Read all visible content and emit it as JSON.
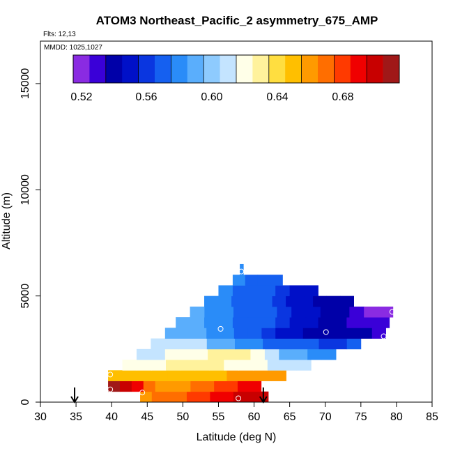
{
  "chart_data": {
    "type": "heatmap",
    "title": "ATOM3 Northeast_Pacific_2 asymmetry_675_AMP",
    "flights_label": "Flts: 12,13",
    "mmdd_label": "MMDD: 1025,1027",
    "xlabel": "Latitude (deg N)",
    "ylabel": "Altitude (m)",
    "xlim": [
      30,
      85
    ],
    "ylim": [
      0,
      17000
    ],
    "x_ticks": [
      "30",
      "35",
      "40",
      "45",
      "50",
      "55",
      "60",
      "65",
      "70",
      "75",
      "80",
      "85"
    ],
    "y_ticks": [
      "0",
      "5000",
      "10000",
      "15000"
    ],
    "colorbar": {
      "min": 0.51,
      "max": 0.71,
      "labels": [
        "0.52",
        "0.56",
        "0.60",
        "0.64",
        "0.68"
      ],
      "colors": [
        "#8a2be2",
        "#3a00d8",
        "#0000a8",
        "#0010c8",
        "#0a36e0",
        "#1560f0",
        "#2a8cf8",
        "#5aaefc",
        "#8ecbfe",
        "#c4e4ff",
        "#ffffe8",
        "#fff29c",
        "#ffde40",
        "#ffbf00",
        "#ff9a00",
        "#ff6e00",
        "#ff3a00",
        "#f00000",
        "#c80000",
        "#a01818"
      ]
    },
    "arrows_at_lat": [
      34.8,
      61.3
    ],
    "rows": [
      {
        "alt": [
          0,
          500
        ],
        "lat": [
          44,
          62
        ],
        "v": [
          0.65,
          0.66,
          0.66,
          0.66,
          0.67,
          0.67,
          0.68,
          0.68,
          0.69,
          0.69,
          0.69
        ]
      },
      {
        "alt": [
          500,
          1000
        ],
        "lat": [
          39.5,
          61
        ],
        "v": [
          0.7,
          0.69,
          0.68,
          0.66,
          0.65,
          0.65,
          0.65,
          0.66,
          0.66,
          0.67,
          0.67,
          0.68,
          0.68
        ]
      },
      {
        "alt": [
          1000,
          1500
        ],
        "lat": [
          39.5,
          64.5
        ],
        "v": [
          0.64,
          0.64,
          0.64,
          0.64,
          0.64,
          0.64,
          0.64,
          0.64,
          0.65,
          0.65,
          0.65,
          0.65
        ]
      },
      {
        "alt": [
          1500,
          2000
        ],
        "lat": [
          41.5,
          68
        ],
        "v": [
          0.61,
          0.61,
          0.61,
          0.62,
          0.62,
          0.62,
          0.62,
          0.61,
          0.61,
          0.61,
          0.6,
          0.6,
          0.6
        ]
      },
      {
        "alt": [
          2000,
          2500
        ],
        "lat": [
          43.5,
          71.5
        ],
        "v": [
          0.6,
          0.6,
          0.61,
          0.61,
          0.61,
          0.62,
          0.62,
          0.62,
          0.61,
          0.6,
          0.59,
          0.59,
          0.58,
          0.58
        ]
      },
      {
        "alt": [
          2500,
          3000
        ],
        "lat": [
          45.5,
          75
        ],
        "v": [
          0.6,
          0.6,
          0.6,
          0.6,
          0.59,
          0.59,
          0.58,
          0.58,
          0.57,
          0.57,
          0.56,
          0.56,
          0.55,
          0.55,
          0.56
        ]
      },
      {
        "alt": [
          3000,
          3500
        ],
        "lat": [
          47.5,
          78.5
        ],
        "v": [
          0.59,
          0.59,
          0.59,
          0.58,
          0.58,
          0.57,
          0.57,
          0.55,
          0.54,
          0.54,
          0.53,
          0.53,
          0.53,
          0.53,
          0.53,
          0.52
        ]
      },
      {
        "alt": [
          3500,
          4000
        ],
        "lat": [
          49,
          79
        ],
        "v": [
          0.59,
          0.59,
          0.58,
          0.58,
          0.57,
          0.57,
          0.56,
          0.55,
          0.54,
          0.54,
          0.53,
          0.53,
          0.52,
          0.52,
          0.52
        ]
      },
      {
        "alt": [
          4000,
          4500
        ],
        "lat": [
          51,
          79.5
        ],
        "v": [
          0.59,
          0.58,
          0.58,
          0.57,
          0.57,
          0.56,
          0.55,
          0.54,
          0.54,
          0.53,
          0.53,
          0.52,
          0.51,
          0.51
        ]
      },
      {
        "alt": [
          4500,
          5000
        ],
        "lat": [
          53,
          74
        ],
        "v": [
          0.58,
          0.58,
          0.57,
          0.56,
          0.56,
          0.55,
          0.54,
          0.54,
          0.53,
          0.53,
          0.53
        ]
      },
      {
        "alt": [
          5000,
          5500
        ],
        "lat": [
          55,
          69
        ],
        "v": [
          0.58,
          0.57,
          0.57,
          0.56,
          0.55,
          0.54,
          0.54
        ]
      },
      {
        "alt": [
          5500,
          6000
        ],
        "lat": [
          57,
          64
        ],
        "v": [
          0.58,
          0.57,
          0.57,
          0.56
        ]
      },
      {
        "alt": [
          6000,
          6500
        ],
        "lat": [
          58,
          58.5
        ],
        "v": [
          0.58
        ]
      }
    ],
    "circles": [
      {
        "lat": 39.8,
        "alt": 1300
      },
      {
        "lat": 39.8,
        "alt": 600
      },
      {
        "lat": 44.3,
        "alt": 450
      },
      {
        "lat": 57.8,
        "alt": 180
      },
      {
        "lat": 55.3,
        "alt": 3450
      },
      {
        "lat": 58.2,
        "alt": 6150
      },
      {
        "lat": 70.1,
        "alt": 3300
      },
      {
        "lat": 78.2,
        "alt": 3100
      },
      {
        "lat": 79.4,
        "alt": 4250
      }
    ]
  }
}
